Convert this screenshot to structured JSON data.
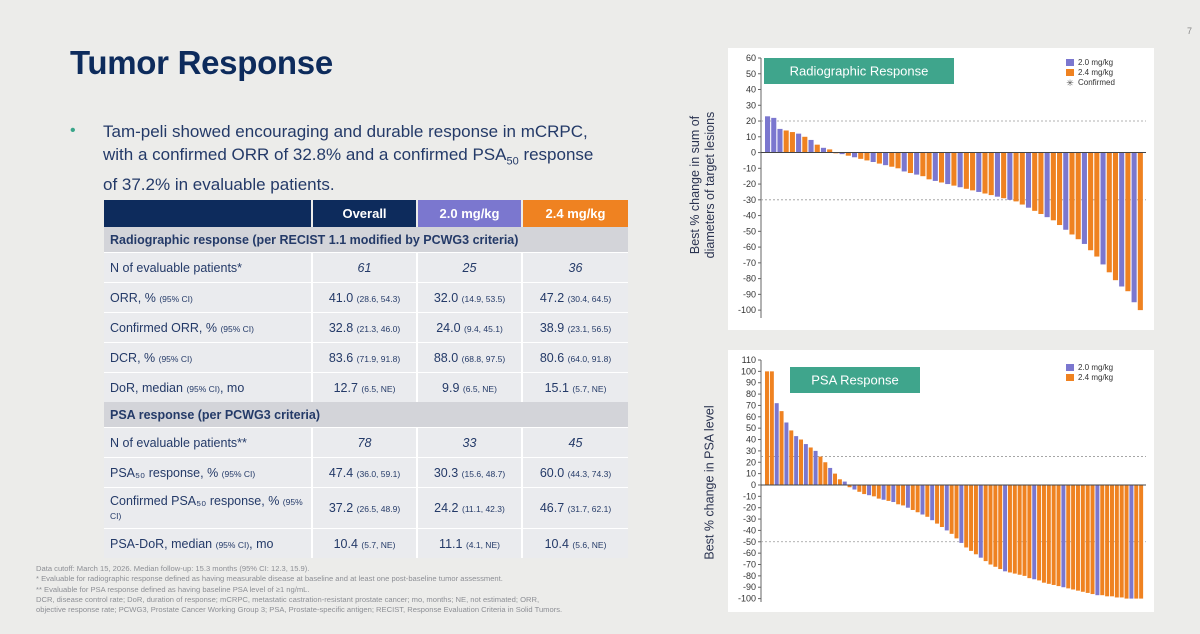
{
  "slide_number": "7",
  "title": "Tumor Response",
  "bullet": {
    "line1": "Tam-peli showed encouraging and durable response in mCRPC,",
    "line2_pre": "with a confirmed ORR of 32.8% and a confirmed PSA",
    "line2_sub": "50",
    "line2_post": " response",
    "line3": "of 37.2% in evaluable patients."
  },
  "table": {
    "headers": [
      "Overall",
      "2.0 mg/kg",
      "2.4 mg/kg"
    ],
    "header_colors": [
      "#0d2b5c",
      "#7b77cf",
      "#ef8221"
    ],
    "sections": [
      {
        "title": "Radiographic response (per RECIST 1.1 modified by PCWG3 criteria)",
        "rows": [
          {
            "label": "N of evaluable patients*",
            "label_ci": "",
            "label_post": "",
            "italic": true,
            "cells": [
              {
                "v": "61",
                "ci": ""
              },
              {
                "v": "25",
                "ci": ""
              },
              {
                "v": "36",
                "ci": ""
              }
            ]
          },
          {
            "label": "ORR, % ",
            "label_ci": "(95% CI)",
            "label_post": "",
            "italic": false,
            "cells": [
              {
                "v": "41.0",
                "ci": "(28.6, 54.3)"
              },
              {
                "v": "32.0",
                "ci": "(14.9, 53.5)"
              },
              {
                "v": "47.2",
                "ci": "(30.4, 64.5)"
              }
            ]
          },
          {
            "label": "Confirmed ORR, % ",
            "label_ci": "(95% CI)",
            "label_post": "",
            "italic": false,
            "cells": [
              {
                "v": "32.8",
                "ci": "(21.3, 46.0)"
              },
              {
                "v": "24.0",
                "ci": "(9.4, 45.1)"
              },
              {
                "v": "38.9",
                "ci": "(23.1, 56.5)"
              }
            ]
          },
          {
            "label": "DCR, % ",
            "label_ci": "(95% CI)",
            "label_post": "",
            "italic": false,
            "cells": [
              {
                "v": "83.6",
                "ci": "(71.9, 91.8)"
              },
              {
                "v": "88.0",
                "ci": "(68.8, 97.5)"
              },
              {
                "v": "80.6",
                "ci": "(64.0, 91.8)"
              }
            ]
          },
          {
            "label": "DoR, median ",
            "label_ci": "(95% CI)",
            "label_post": ", mo",
            "italic": false,
            "cells": [
              {
                "v": "12.7",
                "ci": "(6.5, NE)"
              },
              {
                "v": "9.9",
                "ci": "(6.5, NE)"
              },
              {
                "v": "15.1",
                "ci": "(5.7, NE)"
              }
            ]
          }
        ]
      },
      {
        "title": "PSA response (per PCWG3 criteria)",
        "rows": [
          {
            "label": "N of evaluable patients**",
            "label_ci": "",
            "label_post": "",
            "italic": true,
            "cells": [
              {
                "v": "78",
                "ci": ""
              },
              {
                "v": "33",
                "ci": ""
              },
              {
                "v": "45",
                "ci": ""
              }
            ]
          },
          {
            "label": "PSA₅₀ response, % ",
            "label_ci": "(95% CI)",
            "label_post": "",
            "italic": false,
            "cells": [
              {
                "v": "47.4",
                "ci": "(36.0, 59.1)"
              },
              {
                "v": "30.3",
                "ci": "(15.6, 48.7)"
              },
              {
                "v": "60.0",
                "ci": "(44.3, 74.3)"
              }
            ]
          },
          {
            "label": "Confirmed PSA₅₀ response, % ",
            "label_ci": "(95% CI)",
            "label_post": "",
            "italic": false,
            "tall": true,
            "cells": [
              {
                "v": "37.2",
                "ci": "(26.5, 48.9)"
              },
              {
                "v": "24.2",
                "ci": "(11.1, 42.3)"
              },
              {
                "v": "46.7",
                "ci": "(31.7, 62.1)"
              }
            ]
          },
          {
            "label": "PSA-DoR, median ",
            "label_ci": "(95% CI)",
            "label_post": ", mo",
            "italic": false,
            "cells": [
              {
                "v": "10.4",
                "ci": "(5.7, NE)"
              },
              {
                "v": "11.1",
                "ci": "(4.1, NE)"
              },
              {
                "v": "10.4",
                "ci": "(5.6, NE)"
              }
            ]
          }
        ]
      }
    ]
  },
  "footnotes": [
    "Data cutoff: March 15, 2026. Median follow-up: 15.3 months (95% CI: 12.3, 15.9).",
    "* Evaluable for radiographic response defined as having measurable disease at baseline and at least one post-baseline tumor assessment.",
    "** Evaluable for PSA response defined as having baseline PSA level of ≥1 ng/mL.",
    "DCR, disease control rate; DoR, duration of response; mCRPC, metastatic castration-resistant prostate cancer; mo, months; NE, not estimated; ORR,",
    "objective response rate; PCWG3, Prostate Cancer Working Group 3; PSA, Prostate-specific antigen; RECIST, Response Evaluation Criteria in Solid Tumors."
  ],
  "colors": {
    "dose_2_0": "#7b77cf",
    "dose_2_4": "#ef8221",
    "badge": "#3fa58c"
  },
  "chart_data": [
    {
      "type": "bar",
      "title": "Radiographic Response",
      "ylabel": "Best % change in sum of diameters of target lesions",
      "ylabel_lines": [
        "Best % change in sum of",
        "diameters of target lesions"
      ],
      "ylim": [
        -105,
        60
      ],
      "yticks": [
        60,
        50,
        40,
        30,
        20,
        10,
        0,
        -10,
        -20,
        -30,
        -40,
        -50,
        -60,
        -70,
        -80,
        -90,
        -100
      ],
      "reference_lines": [
        20,
        -30
      ],
      "grid": false,
      "legend_position": "top-right",
      "legend": [
        {
          "name": "2.0 mg/kg",
          "color": "#7b77cf"
        },
        {
          "name": "2.4 mg/kg",
          "color": "#ef8221"
        },
        {
          "name": "Confirmed",
          "symbol": "✳"
        }
      ],
      "values": [
        23,
        22,
        15,
        14,
        13,
        12,
        10,
        8,
        5,
        3,
        2,
        0,
        -1,
        -2,
        -3,
        -4,
        -5,
        -6,
        -7,
        -8,
        -9,
        -10,
        -12,
        -13,
        -14,
        -15,
        -17,
        -18,
        -19,
        -20,
        -21,
        -22,
        -23,
        -24,
        -25,
        -26,
        -27,
        -28,
        -29,
        -30,
        -31,
        -33,
        -35,
        -37,
        -39,
        -41,
        -43,
        -46,
        -49,
        -52,
        -55,
        -58,
        -62,
        -66,
        -71,
        -76,
        -81,
        -85,
        -88,
        -95,
        -100
      ],
      "doses": [
        "b",
        "b",
        "b",
        "o",
        "o",
        "b",
        "o",
        "b",
        "o",
        "b",
        "o",
        "o",
        "b",
        "o",
        "b",
        "o",
        "o",
        "b",
        "o",
        "b",
        "o",
        "o",
        "b",
        "o",
        "b",
        "o",
        "o",
        "b",
        "o",
        "b",
        "o",
        "b",
        "o",
        "o",
        "b",
        "o",
        "o",
        "b",
        "o",
        "b",
        "o",
        "o",
        "b",
        "o",
        "o",
        "b",
        "o",
        "o",
        "b",
        "o",
        "o",
        "b",
        "o",
        "o",
        "b",
        "o",
        "o",
        "b",
        "o",
        "b",
        "o"
      ]
    },
    {
      "type": "bar",
      "title": "PSA Response",
      "ylabel": "Best % change in PSA level",
      "ylim": [
        -103,
        110
      ],
      "yticks": [
        110,
        100,
        90,
        80,
        70,
        60,
        50,
        40,
        30,
        20,
        10,
        0,
        -10,
        -20,
        -30,
        -40,
        -50,
        -60,
        -70,
        -80,
        -90,
        -100
      ],
      "reference_lines": [
        25,
        -50
      ],
      "grid": false,
      "legend_position": "top-right",
      "legend": [
        {
          "name": "2.0 mg/kg",
          "color": "#7b77cf"
        },
        {
          "name": "2.4 mg/kg",
          "color": "#ef8221"
        }
      ],
      "values": [
        100,
        100,
        72,
        65,
        55,
        48,
        43,
        40,
        36,
        33,
        30,
        25,
        20,
        15,
        10,
        5,
        3,
        -2,
        -4,
        -6,
        -8,
        -9,
        -10,
        -12,
        -13,
        -14,
        -15,
        -17,
        -18,
        -20,
        -22,
        -24,
        -26,
        -28,
        -31,
        -34,
        -37,
        -40,
        -43,
        -47,
        -51,
        -55,
        -58,
        -61,
        -64,
        -67,
        -70,
        -72,
        -74,
        -76,
        -77,
        -78,
        -79,
        -80,
        -82,
        -83,
        -84,
        -86,
        -87,
        -88,
        -89,
        -90,
        -91,
        -92,
        -93,
        -94,
        -95,
        -96,
        -97,
        -97,
        -98,
        -98,
        -99,
        -99,
        -100,
        -100,
        -100,
        -100
      ],
      "doses": [
        "o",
        "o",
        "b",
        "o",
        "b",
        "o",
        "b",
        "o",
        "b",
        "o",
        "b",
        "o",
        "o",
        "b",
        "o",
        "o",
        "b",
        "o",
        "b",
        "o",
        "o",
        "b",
        "o",
        "o",
        "b",
        "o",
        "b",
        "o",
        "o",
        "b",
        "o",
        "o",
        "b",
        "o",
        "b",
        "o",
        "o",
        "b",
        "o",
        "o",
        "b",
        "o",
        "o",
        "o",
        "b",
        "o",
        "o",
        "o",
        "o",
        "b",
        "o",
        "o",
        "o",
        "o",
        "o",
        "b",
        "o",
        "o",
        "o",
        "o",
        "o",
        "b",
        "o",
        "o",
        "o",
        "o",
        "o",
        "o",
        "b",
        "o",
        "o",
        "o",
        "o",
        "o",
        "o",
        "b",
        "o",
        "o"
      ]
    }
  ]
}
